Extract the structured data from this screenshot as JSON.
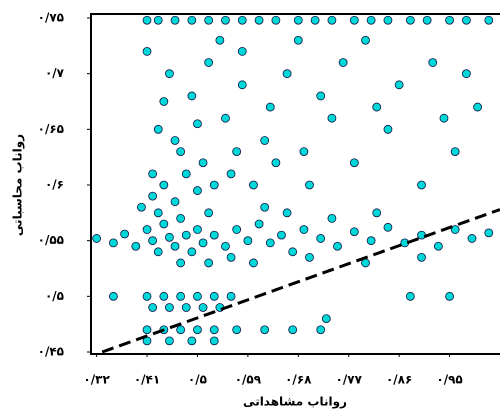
{
  "chart_data": {
    "type": "scatter",
    "x_label": "رواناب مشاهداتی",
    "y_label": "رواناب محاسباتی",
    "xlim": [
      0.31,
      1.04
    ],
    "ylim": [
      0.45,
      0.75
    ],
    "xticks": [
      {
        "value": 0.32,
        "label": "۰/۳۲"
      },
      {
        "value": 0.41,
        "label": "۰/۴۱"
      },
      {
        "value": 0.5,
        "label": "۰/۵"
      },
      {
        "value": 0.59,
        "label": "۰/۵۹"
      },
      {
        "value": 0.68,
        "label": "۰/۶۸"
      },
      {
        "value": 0.77,
        "label": "۰/۷۷"
      },
      {
        "value": 0.86,
        "label": "۰/۸۶"
      },
      {
        "value": 0.95,
        "label": "۰/۹۵"
      }
    ],
    "yticks": [
      {
        "value": 0.45,
        "label": "۰/۴۵"
      },
      {
        "value": 0.5,
        "label": "۰/۵"
      },
      {
        "value": 0.55,
        "label": "۰/۵۵"
      },
      {
        "value": 0.6,
        "label": "۰/۶"
      },
      {
        "value": 0.65,
        "label": "۰/۶۵"
      },
      {
        "value": 0.7,
        "label": "۰/۷"
      },
      {
        "value": 0.75,
        "label": "۰/۷۵"
      }
    ],
    "grid": false,
    "series": [
      {
        "color": "#00d8d8",
        "x": [
          0.41,
          0.43,
          0.46,
          0.49,
          0.52,
          0.55,
          0.58,
          0.61,
          0.64,
          0.68,
          0.71,
          0.74,
          0.78,
          0.81,
          0.84,
          0.88,
          0.91,
          0.95,
          0.98,
          1.02,
          0.32,
          0.35,
          0.37,
          0.39,
          0.41,
          0.42,
          0.43,
          0.44,
          0.45,
          0.46,
          0.47,
          0.48,
          0.49,
          0.5,
          0.51,
          0.52,
          0.53,
          0.55,
          0.57,
          0.59,
          0.61,
          0.63,
          0.65,
          0.67,
          0.69,
          0.72,
          0.75,
          0.78,
          0.81,
          0.84,
          0.87,
          0.9,
          0.93,
          0.96,
          0.99,
          1.02,
          0.4,
          0.42,
          0.44,
          0.46,
          0.48,
          0.5,
          0.43,
          0.47,
          0.52,
          0.56,
          0.6,
          0.7,
          0.8,
          0.9,
          0.62,
          0.66,
          0.74,
          0.82,
          0.35,
          0.41,
          0.44,
          0.47,
          0.5,
          0.53,
          0.56,
          0.42,
          0.45,
          0.48,
          0.51,
          0.54,
          0.41,
          0.44,
          0.47,
          0.5,
          0.53,
          0.57,
          0.62,
          0.67,
          0.72,
          0.41,
          0.45,
          0.49,
          0.53,
          0.88,
          0.95,
          0.73,
          0.41,
          0.45,
          0.49,
          0.52,
          0.55,
          0.58,
          0.62,
          0.66,
          0.72,
          0.76,
          0.8,
          0.86,
          0.92,
          0.98,
          0.43,
          0.47,
          0.51,
          0.56,
          0.6,
          0.64,
          0.7,
          0.78,
          0.84,
          0.9,
          0.96,
          1.0,
          0.44,
          0.5,
          0.54,
          0.58,
          0.68,
          0.74,
          0.82,
          0.94,
          0.42,
          0.46,
          0.53,
          0.57,
          0.63,
          0.69
        ],
        "y": [
          0.748,
          0.748,
          0.748,
          0.748,
          0.748,
          0.748,
          0.748,
          0.748,
          0.748,
          0.748,
          0.748,
          0.748,
          0.748,
          0.748,
          0.748,
          0.748,
          0.748,
          0.748,
          0.748,
          0.748,
          0.552,
          0.548,
          0.556,
          0.545,
          0.56,
          0.55,
          0.54,
          0.565,
          0.553,
          0.545,
          0.57,
          0.555,
          0.54,
          0.56,
          0.548,
          0.575,
          0.555,
          0.545,
          0.56,
          0.55,
          0.565,
          0.548,
          0.555,
          0.54,
          0.56,
          0.552,
          0.545,
          0.558,
          0.55,
          0.562,
          0.548,
          0.555,
          0.545,
          0.56,
          0.552,
          0.557,
          0.58,
          0.59,
          0.6,
          0.585,
          0.61,
          0.595,
          0.575,
          0.53,
          0.53,
          0.535,
          0.53,
          0.535,
          0.53,
          0.535,
          0.58,
          0.575,
          0.57,
          0.575,
          0.5,
          0.5,
          0.5,
          0.5,
          0.5,
          0.5,
          0.5,
          0.49,
          0.49,
          0.49,
          0.49,
          0.49,
          0.47,
          0.47,
          0.47,
          0.47,
          0.47,
          0.47,
          0.47,
          0.47,
          0.47,
          0.46,
          0.46,
          0.46,
          0.46,
          0.5,
          0.5,
          0.48,
          0.72,
          0.7,
          0.68,
          0.71,
          0.66,
          0.69,
          0.64,
          0.7,
          0.68,
          0.71,
          0.73,
          0.69,
          0.71,
          0.7,
          0.65,
          0.63,
          0.62,
          0.61,
          0.6,
          0.62,
          0.6,
          0.62,
          0.65,
          0.6,
          0.63,
          0.67,
          0.675,
          0.655,
          0.73,
          0.72,
          0.73,
          0.66,
          0.67,
          0.66,
          0.61,
          0.64,
          0.6,
          0.63,
          0.67,
          0.63
        ]
      }
    ],
    "trend": {
      "color": "#000000",
      "x": [
        0.33,
        1.04
      ],
      "y": [
        0.45,
        0.578
      ]
    }
  }
}
